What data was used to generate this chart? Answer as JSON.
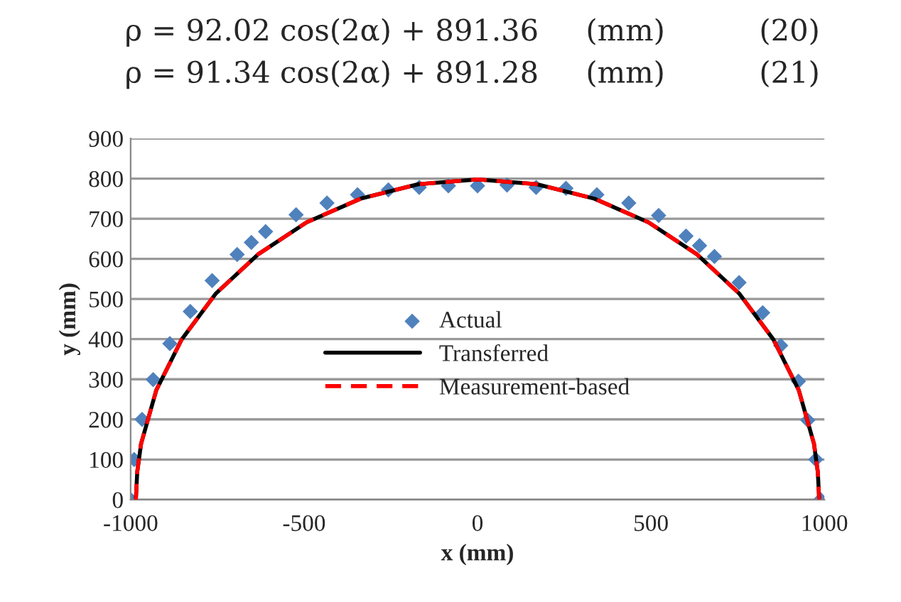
{
  "chart_data": {
    "type": "scatter",
    "annotations": [
      "ρ = 92.02 cos(2α) + 891.36     (mm)          (20)",
      "ρ = 91.34 cos(2α) + 891.28     (mm)          (21)"
    ],
    "xlabel": "x (mm)",
    "ylabel": "y (mm)",
    "xlim": [
      -1000,
      1000
    ],
    "xticks": [
      -1000,
      -500,
      0,
      500,
      1000
    ],
    "ylim": [
      0,
      900
    ],
    "yticks": [
      0,
      100,
      200,
      300,
      400,
      500,
      600,
      700,
      800,
      900
    ],
    "grid": "y",
    "legend": "center",
    "series": [
      {
        "name": "Actual",
        "marker": "diamond",
        "color": "#4f81bd",
        "x": [
          -1000,
          -990,
          -967,
          -935,
          -887,
          -828,
          -765,
          -693,
          -652,
          -611,
          -523,
          -434,
          -346,
          -257,
          -168,
          -84,
          0,
          85,
          169,
          255,
          344,
          436,
          522,
          601,
          640,
          683,
          754,
          822,
          874,
          925,
          952,
          975,
          989
        ],
        "values": [
          0,
          100,
          200,
          299,
          389,
          469,
          546,
          611,
          641,
          668,
          710,
          739,
          760,
          772,
          778,
          782,
          782,
          784,
          778,
          776,
          760,
          739,
          708,
          657,
          633,
          606,
          541,
          466,
          384,
          295,
          198,
          100,
          0
        ]
      },
      {
        "name": "Transferred",
        "type": "line",
        "line_style": "solid",
        "marker": "none",
        "color": "#000000",
        "x": [
          -985,
          -981,
          -970,
          -926,
          -853,
          -755,
          -633,
          -493,
          -337,
          -171,
          0,
          171,
          337,
          493,
          633,
          755,
          853,
          926,
          970,
          981,
          985
        ],
        "values": [
          0,
          69,
          139,
          273,
          399,
          513,
          611,
          691,
          750,
          786,
          798,
          786,
          750,
          691,
          611,
          513,
          399,
          273,
          139,
          69,
          0
        ]
      },
      {
        "name": "Measurement-based",
        "type": "line",
        "line_style": "dashed",
        "marker": "none",
        "color": "#ff0000",
        "x": [
          -985,
          -981,
          -970,
          -926,
          -853,
          -755,
          -633,
          -493,
          -337,
          -171,
          0,
          171,
          337,
          493,
          633,
          755,
          853,
          926,
          970,
          981,
          985
        ],
        "values": [
          0,
          69,
          139,
          273,
          399,
          513,
          611,
          691,
          750,
          786,
          798,
          786,
          750,
          691,
          611,
          513,
          399,
          273,
          139,
          69,
          0
        ]
      }
    ]
  }
}
